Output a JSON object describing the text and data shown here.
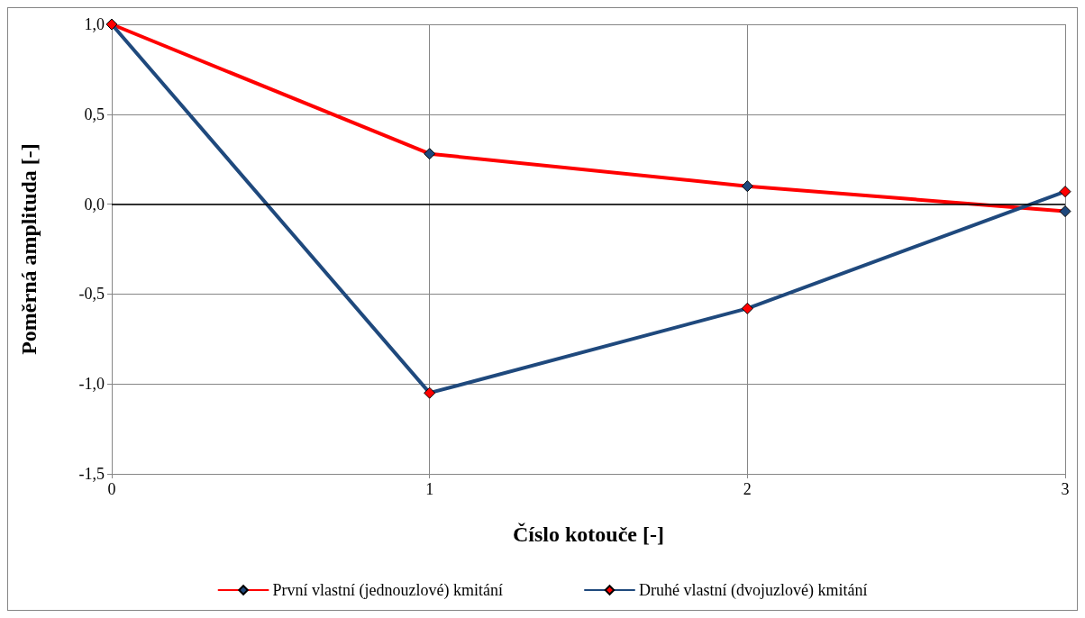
{
  "chart_data": {
    "type": "line",
    "xlabel": "Číslo kotouče [-]",
    "ylabel": "Poměrná amplituda [-]",
    "x": [
      0,
      1,
      2,
      3
    ],
    "series": [
      {
        "name": "První vlastní (jednouzlové) kmitání",
        "color": "#ff0000",
        "values": [
          1.0,
          0.28,
          0.1,
          -0.04
        ]
      },
      {
        "name": "Druhé vlastní (dvojuzlové) kmitání",
        "color": "#1f497d",
        "values": [
          1.0,
          -1.05,
          -0.58,
          0.07
        ]
      }
    ],
    "xlim": [
      0,
      3
    ],
    "xticks": [
      0,
      1,
      2,
      3
    ],
    "ylim": [
      -1.5,
      1
    ],
    "yticks": [
      {
        "value": -1.5,
        "label": "-1,5"
      },
      {
        "value": -1,
        "label": "-1,0"
      },
      {
        "value": -0.5,
        "label": "-0,5"
      },
      {
        "value": 0,
        "label": "0,0"
      },
      {
        "value": 0.5,
        "label": "0,5"
      },
      {
        "value": 1,
        "label": "1,0"
      }
    ],
    "ref_lines": [
      {
        "axis": "y",
        "value": 0,
        "color": "#000000"
      }
    ],
    "grid": true,
    "legend": "bottom",
    "marker": "diamond",
    "line_style": "solid"
  }
}
